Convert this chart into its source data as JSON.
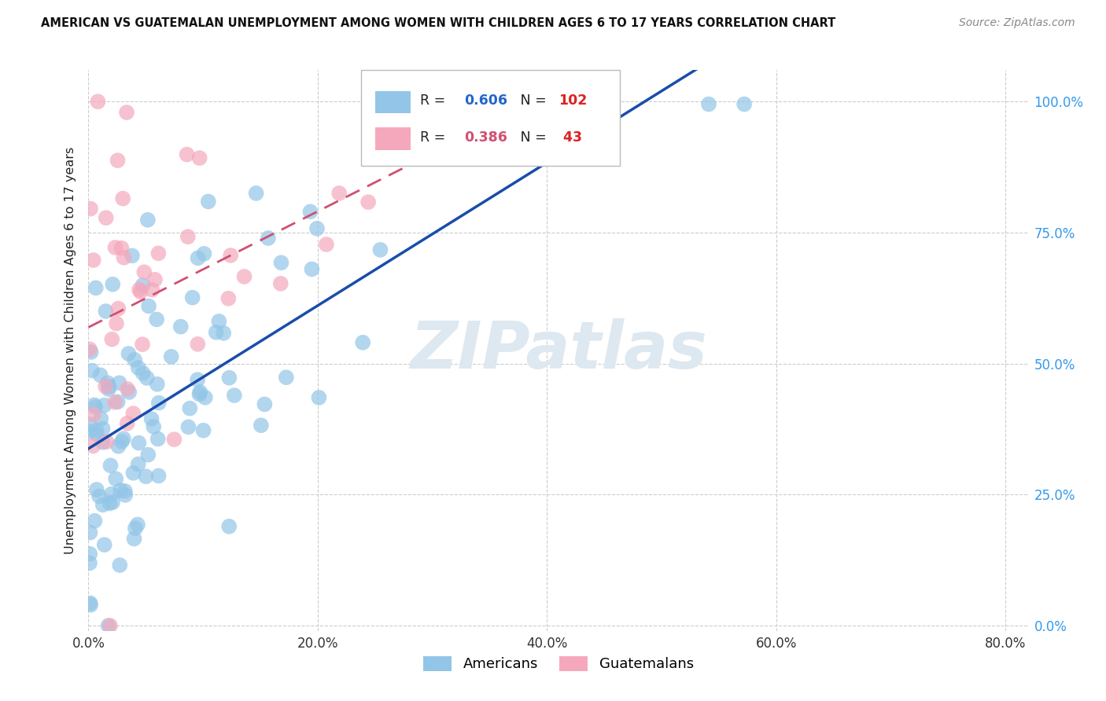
{
  "title": "AMERICAN VS GUATEMALAN UNEMPLOYMENT AMONG WOMEN WITH CHILDREN AGES 6 TO 17 YEARS CORRELATION CHART",
  "source": "Source: ZipAtlas.com",
  "ylabel": "Unemployment Among Women with Children Ages 6 to 17 years",
  "american_color": "#92C5E8",
  "guatemalan_color": "#F5A8BC",
  "trendline_american_color": "#1A4DAB",
  "trendline_guatemalan_color": "#D05070",
  "legend_r_color_american": "#2266CC",
  "legend_n_color_american": "#DD2222",
  "legend_r_color_guatemalan": "#D05070",
  "legend_n_color_guatemalan": "#DD2222",
  "watermark_color": "#E8EEF5",
  "background_color": "#FFFFFF",
  "grid_color": "#CCCCCC",
  "xticks": [
    0.0,
    0.2,
    0.4,
    0.6,
    0.8
  ],
  "yticks": [
    0.0,
    0.25,
    0.5,
    0.75,
    1.0
  ],
  "xlim": [
    0.0,
    0.82
  ],
  "ylim": [
    -0.01,
    1.06
  ],
  "american_n": 102,
  "guatemalan_n": 43,
  "american_r": 0.606,
  "guatemalan_r": 0.386
}
